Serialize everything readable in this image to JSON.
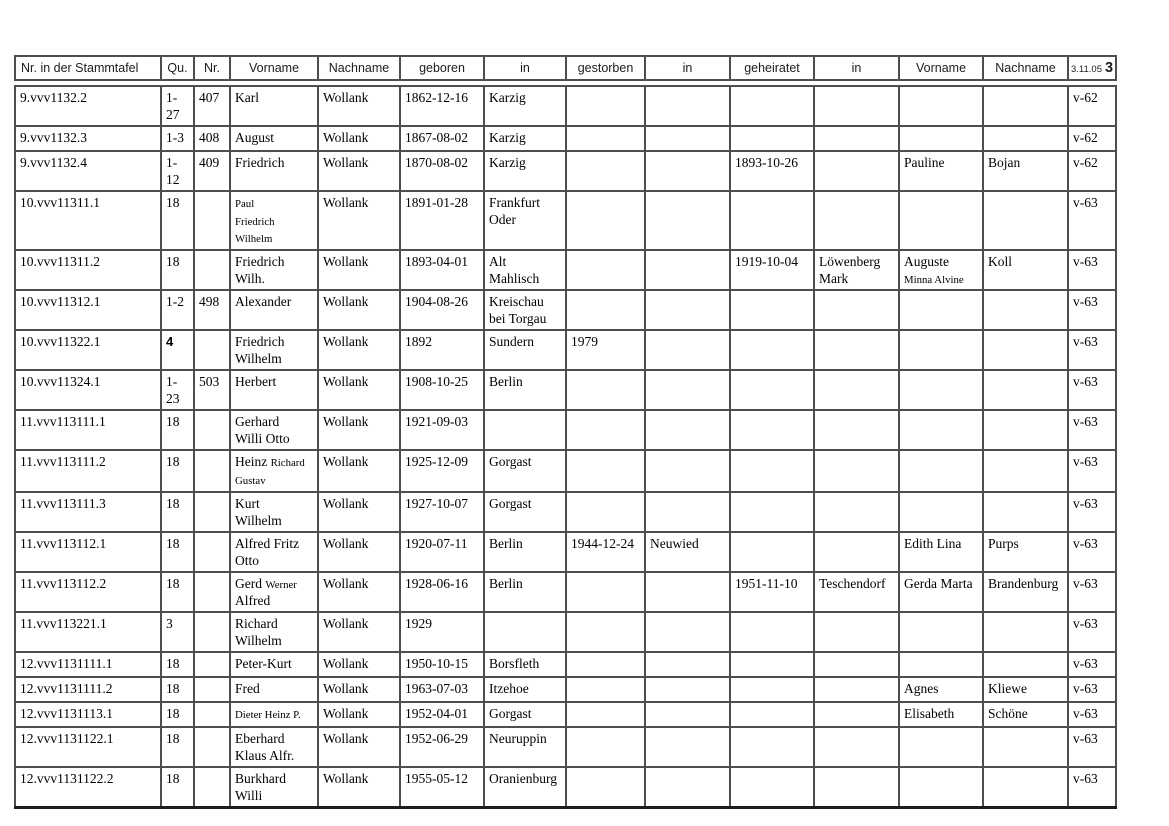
{
  "table": {
    "columns": [
      {
        "key": "id",
        "label": "Nr. in der Stammtafel"
      },
      {
        "key": "qu",
        "label": "Qu."
      },
      {
        "key": "nr",
        "label": "Nr."
      },
      {
        "key": "vorname",
        "label": "Vorname"
      },
      {
        "key": "nachname",
        "label": "Nachname"
      },
      {
        "key": "geboren",
        "label": "geboren"
      },
      {
        "key": "geboren_in",
        "label": "in"
      },
      {
        "key": "gestorben",
        "label": "gestorben"
      },
      {
        "key": "gestorben_in",
        "label": "in"
      },
      {
        "key": "geheiratet",
        "label": "geheiratet"
      },
      {
        "key": "geheiratet_in",
        "label": "in"
      },
      {
        "key": "partner_vorname",
        "label": "Vorname"
      },
      {
        "key": "partner_nachname",
        "label": "Nachname"
      },
      {
        "key": "ref",
        "label_date": "3.11.05",
        "label_page": "3"
      }
    ],
    "rows": [
      {
        "cells": {
          "id": "9.vvv1132.2",
          "qu": "1-27",
          "nr": "407",
          "vorname": "Karl",
          "nachname": "Wollank",
          "geboren": "1862-12-16",
          "geboren_in": "Karzig",
          "gestorben": "",
          "gestorben_in": "",
          "geheiratet": "",
          "geheiratet_in": "",
          "partner_vorname": "",
          "partner_nachname": "",
          "ref": "v-62"
        }
      },
      {
        "cells": {
          "id": "9.vvv1132.3",
          "qu": "1-3",
          "nr": "408",
          "vorname": "August",
          "nachname": "Wollank",
          "geboren": "1867-08-02",
          "geboren_in": "Karzig",
          "gestorben": "",
          "gestorben_in": "",
          "geheiratet": "",
          "geheiratet_in": "",
          "partner_vorname": "",
          "partner_nachname": "",
          "ref": "v-62"
        }
      },
      {
        "cells": {
          "id": "9.vvv1132.4",
          "qu": "1-12",
          "nr": "409",
          "vorname": "Friedrich",
          "nachname": "Wollank",
          "geboren": "1870-08-02",
          "geboren_in": "Karzig",
          "gestorben": "",
          "gestorben_in": "",
          "geheiratet": "1893-10-26",
          "geheiratet_in": "",
          "partner_vorname": "Pauline",
          "partner_nachname": "Bojan",
          "ref": "v-62"
        }
      },
      {
        "cells": {
          "id": "10.vvv11311.1",
          "qu": "18",
          "nr": "",
          "vorname": [
            {
              "t": "Paul\nFriedrich\nWilhelm",
              "small": true
            }
          ],
          "nachname": "Wollank",
          "geboren": "1891-01-28",
          "geboren_in": "Frankfurt\nOder",
          "gestorben": "",
          "gestorben_in": "",
          "geheiratet": "",
          "geheiratet_in": "",
          "partner_vorname": "",
          "partner_nachname": "",
          "ref": "v-63"
        }
      },
      {
        "cells": {
          "id": "10.vvv11311.2",
          "qu": "18",
          "nr": "",
          "vorname": "Friedrich\nWilh.",
          "nachname": "Wollank",
          "geboren": "1893-04-01",
          "geboren_in": "Alt\nMahlisch",
          "gestorben": "",
          "gestorben_in": "",
          "geheiratet": "1919-10-04",
          "geheiratet_in": "Löwenberg\nMark",
          "partner_vorname": [
            {
              "t": "Auguste\n"
            },
            {
              "t": "Minna Alvine",
              "small": true
            }
          ],
          "partner_nachname": "Koll",
          "ref": "v-63"
        }
      },
      {
        "cells": {
          "id": "10.vvv11312.1",
          "qu": "1-2",
          "nr": "498",
          "vorname": "Alexander",
          "nachname": "Wollank",
          "geboren": "1904-08-26",
          "geboren_in": "Kreischau\nbei Torgau",
          "gestorben": "",
          "gestorben_in": "",
          "geheiratet": "",
          "geheiratet_in": "",
          "partner_vorname": "",
          "partner_nachname": "",
          "ref": "v-63"
        }
      },
      {
        "cells": {
          "id": "10.vvv11322.1",
          "qu": [
            {
              "t": "4",
              "bold": true
            }
          ],
          "nr": "",
          "vorname": "Friedrich\nWilhelm",
          "nachname": "Wollank",
          "geboren": "1892",
          "geboren_in": "Sundern",
          "gestorben": "1979",
          "gestorben_in": "",
          "geheiratet": "",
          "geheiratet_in": "",
          "partner_vorname": "",
          "partner_nachname": "",
          "ref": "v-63"
        }
      },
      {
        "cells": {
          "id": "10.vvv11324.1",
          "qu": "1-23",
          "nr": "503",
          "vorname": "Herbert",
          "nachname": "Wollank",
          "geboren": "1908-10-25",
          "geboren_in": "Berlin",
          "gestorben": "",
          "gestorben_in": "",
          "geheiratet": "",
          "geheiratet_in": "",
          "partner_vorname": "",
          "partner_nachname": "",
          "ref": "v-63"
        }
      },
      {
        "cells": {
          "id": "11.vvv113111.1",
          "qu": "18",
          "nr": "",
          "vorname": "Gerhard\nWilli Otto",
          "nachname": "Wollank",
          "geboren": "1921-09-03",
          "geboren_in": "",
          "gestorben": "",
          "gestorben_in": "",
          "geheiratet": "",
          "geheiratet_in": "",
          "partner_vorname": "",
          "partner_nachname": "",
          "ref": "v-63"
        }
      },
      {
        "cells": {
          "id": "11.vvv113111.2",
          "qu": "18",
          "nr": "",
          "vorname": [
            {
              "t": "Heinz "
            },
            {
              "t": "Richard\nGustav",
              "small": true
            }
          ],
          "nachname": "Wollank",
          "geboren": "1925-12-09",
          "geboren_in": "Gorgast",
          "gestorben": "",
          "gestorben_in": "",
          "geheiratet": "",
          "geheiratet_in": "",
          "partner_vorname": "",
          "partner_nachname": "",
          "ref": "v-63"
        }
      },
      {
        "cells": {
          "id": "11.vvv113111.3",
          "qu": "18",
          "nr": "",
          "vorname": "Kurt\nWilhelm",
          "nachname": "Wollank",
          "geboren": "1927-10-07",
          "geboren_in": "Gorgast",
          "gestorben": "",
          "gestorben_in": "",
          "geheiratet": "",
          "geheiratet_in": "",
          "partner_vorname": "",
          "partner_nachname": "",
          "ref": "v-63"
        }
      },
      {
        "cells": {
          "id": "11.vvv113112.1",
          "qu": "18",
          "nr": "",
          "vorname": "Alfred Fritz\nOtto",
          "nachname": "Wollank",
          "geboren": "1920-07-11",
          "geboren_in": "Berlin",
          "gestorben": "1944-12-24",
          "gestorben_in": "Neuwied",
          "geheiratet": "",
          "geheiratet_in": "",
          "partner_vorname": "Edith Lina",
          "partner_nachname": "Purps",
          "ref": "v-63"
        }
      },
      {
        "cells": {
          "id": "11.vvv113112.2",
          "qu": "18",
          "nr": "",
          "vorname": [
            {
              "t": "Gerd "
            },
            {
              "t": "Werner",
              "small": true
            },
            {
              "t": "\nAlfred"
            }
          ],
          "nachname": "Wollank",
          "geboren": "1928-06-16",
          "geboren_in": "Berlin",
          "gestorben": "",
          "gestorben_in": "",
          "geheiratet": "1951-11-10",
          "geheiratet_in": "Teschendorf",
          "partner_vorname": "Gerda Marta",
          "partner_nachname": "Brandenburg",
          "ref": "v-63"
        }
      },
      {
        "void": "upper",
        "cells": {
          "id": "11.vvv113221.1",
          "qu": "3",
          "nr": "",
          "vorname": "Richard\nWilhelm",
          "nachname": "Wollank",
          "geboren": "1929",
          "geboren_in": "",
          "gestorben": "",
          "gestorben_in": "",
          "geheiratet": "",
          "geheiratet_in": "",
          "partner_vorname": "",
          "partner_nachname": "",
          "ref": "v-63"
        }
      },
      {
        "void": "lower",
        "cells": {
          "id": "12.vvv1131111.1",
          "qu": "18",
          "nr": "",
          "vorname": "Peter-Kurt",
          "nachname": "Wollank",
          "geboren": "1950-10-15",
          "geboren_in": "Borsfleth",
          "gestorben": "",
          "gestorben_in": "",
          "geheiratet": "",
          "geheiratet_in": "",
          "partner_vorname": "",
          "partner_nachname": "",
          "ref": "v-63"
        }
      },
      {
        "cells": {
          "id": "12.vvv1131111.2",
          "qu": "18",
          "nr": "",
          "vorname": "Fred",
          "nachname": "Wollank",
          "geboren": "1963-07-03",
          "geboren_in": "Itzehoe",
          "gestorben": "",
          "gestorben_in": "",
          "geheiratet": "",
          "geheiratet_in": "",
          "partner_vorname": "Agnes",
          "partner_nachname": "Kliewe",
          "ref": "v-63"
        }
      },
      {
        "cells": {
          "id": "12.vvv1131113.1",
          "qu": "18",
          "nr": "",
          "vorname": [
            {
              "t": "Dieter Heinz P.",
              "small": true
            }
          ],
          "nachname": "Wollank",
          "geboren": "1952-04-01",
          "geboren_in": "Gorgast",
          "gestorben": "",
          "gestorben_in": "",
          "geheiratet": "",
          "geheiratet_in": "",
          "partner_vorname": "Elisabeth",
          "partner_nachname": "Schöne",
          "ref": "v-63"
        }
      },
      {
        "cells": {
          "id": "12.vvv1131122.1",
          "qu": "18",
          "nr": "",
          "vorname": "Eberhard\nKlaus Alfr.",
          "nachname": "Wollank",
          "geboren": "1952-06-29",
          "geboren_in": "Neuruppin",
          "gestorben": "",
          "gestorben_in": "",
          "geheiratet": "",
          "geheiratet_in": "",
          "partner_vorname": "",
          "partner_nachname": "",
          "ref": "v-63"
        }
      },
      {
        "cells": {
          "id": "12.vvv1131122.2",
          "qu": "18",
          "nr": "",
          "vorname": "Burkhard\nWilli",
          "nachname": "Wollank",
          "geboren": "1955-05-12",
          "geboren_in": "Oranienburg",
          "gestorben": "",
          "gestorben_in": "",
          "geheiratet": "",
          "geheiratet_in": "",
          "partner_vorname": "",
          "partner_nachname": "",
          "ref": "v-63"
        }
      }
    ]
  }
}
